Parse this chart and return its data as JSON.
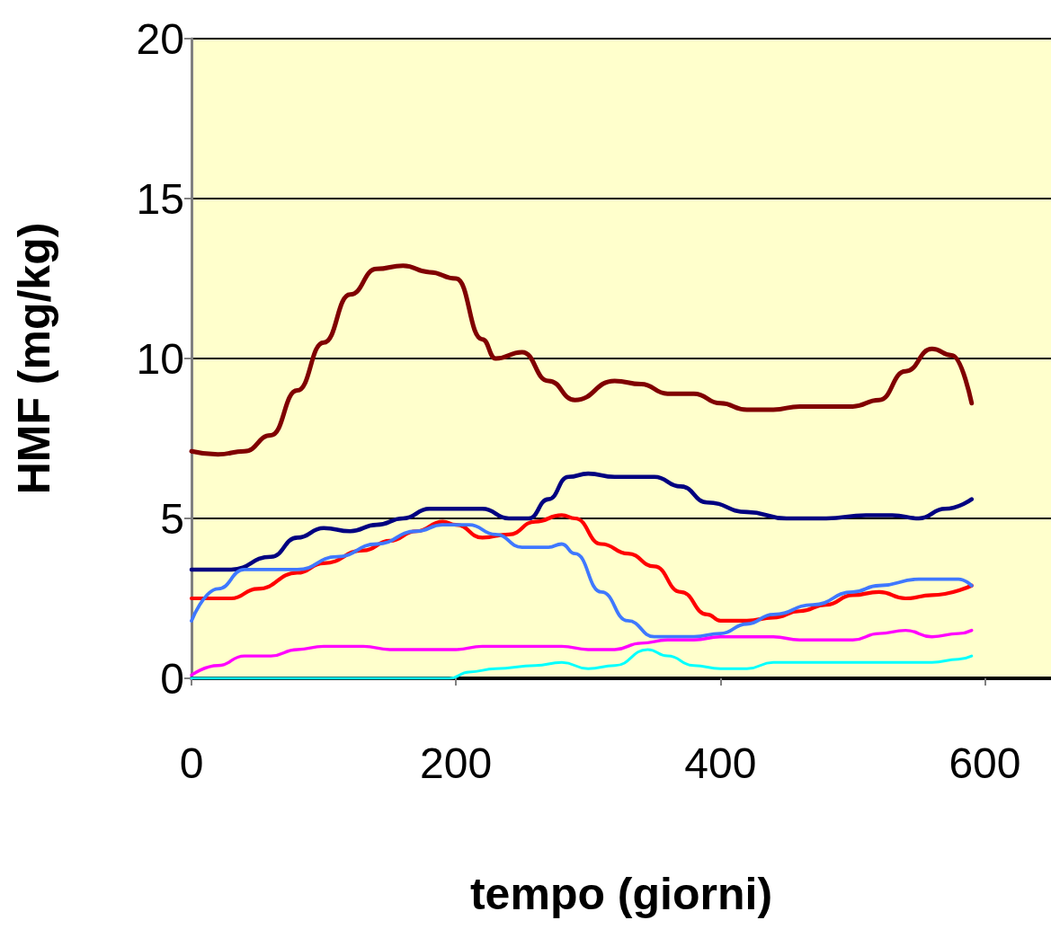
{
  "chart_data": {
    "type": "line",
    "xlabel": "tempo (giorni)",
    "ylabel": "HMF (mg/kg)",
    "xlim": [
      0,
      650
    ],
    "xticks": [
      0,
      200,
      400,
      600
    ],
    "ylim": [
      0,
      20
    ],
    "yticks": [
      0,
      5,
      10,
      15,
      20
    ],
    "grid": "y",
    "marker": "none",
    "line_style": "solid",
    "series": [
      {
        "color": "#800000",
        "x": [
          0,
          20,
          40,
          60,
          80,
          100,
          120,
          140,
          160,
          180,
          200,
          220,
          230,
          250,
          270,
          290,
          320,
          340,
          360,
          380,
          400,
          420,
          440,
          460,
          480,
          500,
          520,
          540,
          560,
          575,
          590
        ],
        "values": [
          7.1,
          7.0,
          7.1,
          7.6,
          9.0,
          10.5,
          12.0,
          12.8,
          12.9,
          12.7,
          12.5,
          10.6,
          10.0,
          10.2,
          9.3,
          8.7,
          9.3,
          9.2,
          8.9,
          8.9,
          8.6,
          8.4,
          8.4,
          8.5,
          8.5,
          8.5,
          8.7,
          9.6,
          10.3,
          10.1,
          8.6
        ]
      },
      {
        "color": "#000080",
        "x": [
          0,
          30,
          60,
          80,
          100,
          120,
          140,
          160,
          180,
          200,
          220,
          240,
          255,
          270,
          285,
          300,
          320,
          350,
          370,
          390,
          420,
          450,
          480,
          510,
          530,
          550,
          570,
          590
        ],
        "values": [
          3.4,
          3.4,
          3.8,
          4.4,
          4.7,
          4.6,
          4.8,
          5.0,
          5.3,
          5.3,
          5.3,
          5.0,
          5.0,
          5.6,
          6.3,
          6.4,
          6.3,
          6.3,
          6.0,
          5.5,
          5.2,
          5.0,
          5.0,
          5.1,
          5.1,
          5.0,
          5.3,
          5.6
        ]
      },
      {
        "color": "#ff0000",
        "x": [
          0,
          30,
          50,
          80,
          100,
          130,
          150,
          170,
          190,
          200,
          220,
          240,
          260,
          280,
          290,
          310,
          330,
          350,
          370,
          390,
          400,
          420,
          440,
          460,
          480,
          500,
          520,
          540,
          560,
          590
        ],
        "values": [
          2.5,
          2.5,
          2.8,
          3.3,
          3.6,
          4.0,
          4.3,
          4.6,
          4.9,
          4.8,
          4.4,
          4.5,
          4.9,
          5.1,
          5.0,
          4.2,
          3.9,
          3.5,
          2.7,
          2.0,
          1.8,
          1.8,
          1.9,
          2.1,
          2.3,
          2.6,
          2.7,
          2.5,
          2.6,
          2.9
        ]
      },
      {
        "color": "#3f78ff",
        "x": [
          0,
          20,
          40,
          80,
          110,
          140,
          170,
          190,
          210,
          230,
          250,
          270,
          280,
          290,
          310,
          330,
          350,
          380,
          400,
          420,
          440,
          470,
          500,
          520,
          550,
          580,
          590
        ],
        "values": [
          1.8,
          2.8,
          3.4,
          3.4,
          3.8,
          4.2,
          4.6,
          4.8,
          4.8,
          4.5,
          4.1,
          4.1,
          4.2,
          3.9,
          2.7,
          1.8,
          1.3,
          1.3,
          1.4,
          1.7,
          2.0,
          2.3,
          2.7,
          2.9,
          3.1,
          3.1,
          2.9
        ]
      },
      {
        "color": "#ff00ff",
        "x": [
          0,
          20,
          40,
          60,
          80,
          100,
          130,
          150,
          170,
          200,
          220,
          250,
          280,
          300,
          320,
          340,
          360,
          380,
          400,
          440,
          460,
          500,
          520,
          540,
          560,
          580,
          590
        ],
        "values": [
          0.1,
          0.4,
          0.7,
          0.7,
          0.9,
          1.0,
          1.0,
          0.9,
          0.9,
          0.9,
          1.0,
          1.0,
          1.0,
          0.9,
          0.9,
          1.1,
          1.2,
          1.2,
          1.3,
          1.3,
          1.2,
          1.2,
          1.4,
          1.5,
          1.3,
          1.4,
          1.5
        ]
      },
      {
        "color": "#00ffff",
        "x": [
          0,
          195,
          210,
          230,
          260,
          280,
          300,
          320,
          345,
          360,
          380,
          400,
          420,
          440,
          500,
          560,
          580,
          590
        ],
        "values": [
          0,
          0,
          0.2,
          0.3,
          0.4,
          0.5,
          0.3,
          0.4,
          0.9,
          0.7,
          0.4,
          0.3,
          0.3,
          0.5,
          0.5,
          0.5,
          0.6,
          0.7
        ]
      }
    ]
  }
}
